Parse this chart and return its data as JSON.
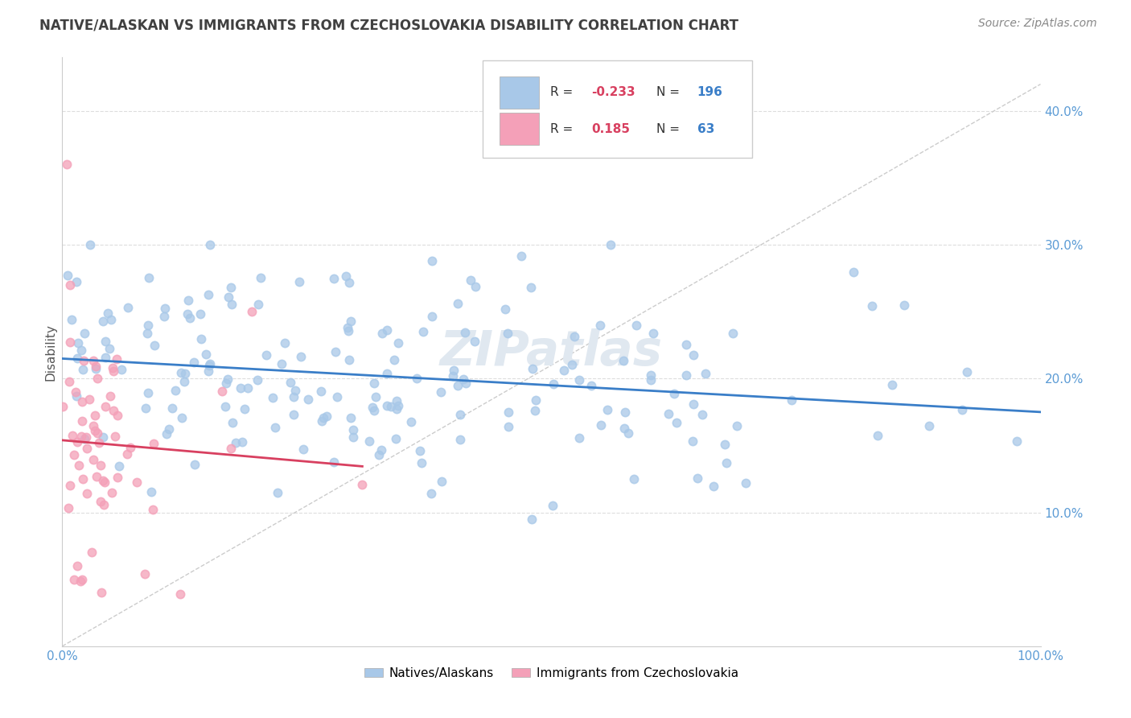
{
  "title": "NATIVE/ALASKAN VS IMMIGRANTS FROM CZECHOSLOVAKIA DISABILITY CORRELATION CHART",
  "source": "Source: ZipAtlas.com",
  "ylabel": "Disability",
  "legend_blue_r": "-0.233",
  "legend_blue_n": "196",
  "legend_pink_r": "0.185",
  "legend_pink_n": "63",
  "blue_color": "#A8C8E8",
  "pink_color": "#F4A0B8",
  "blue_line_color": "#3A7EC8",
  "pink_line_color": "#D84060",
  "trend_line_color": "#CCCCCC",
  "background_color": "#FFFFFF",
  "grid_color": "#DDDDDD",
  "xlim": [
    0,
    1
  ],
  "ylim": [
    0,
    0.44
  ],
  "yticks": [
    0.1,
    0.2,
    0.3,
    0.4
  ],
  "ytick_labels": [
    "10.0%",
    "20.0%",
    "30.0%",
    "40.0%"
  ],
  "tick_color": "#5B9BD5",
  "title_color": "#404040",
  "source_color": "#888888",
  "ylabel_color": "#555555",
  "watermark_text": "ZIPatlas",
  "watermark_color": "#E0E8F0",
  "legend_box_color": "#FFFFFF",
  "legend_border_color": "#CCCCCC",
  "r_value_color": "#D84060",
  "n_value_color": "#3A7EC8"
}
